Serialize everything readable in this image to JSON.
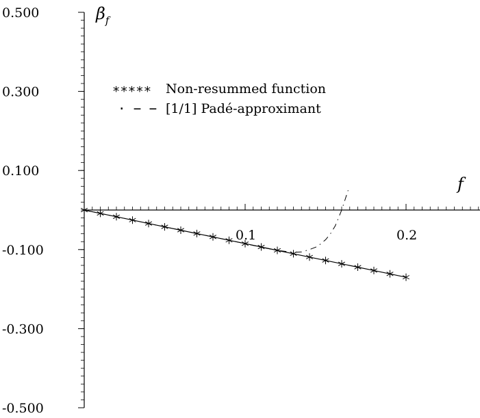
{
  "chart_data": {
    "type": "line",
    "xlabel": "f",
    "ylabel_main": "β",
    "ylabel_sub": "f",
    "xlim": [
      0,
      0.27
    ],
    "ylim": [
      -0.5,
      0.5
    ],
    "x_ticks": [
      {
        "value": 0.1,
        "label": "0.1"
      },
      {
        "value": 0.2,
        "label": "0.2"
      }
    ],
    "y_ticks": [
      {
        "value": 0.5,
        "label": "0.500"
      },
      {
        "value": 0.3,
        "label": "0.300"
      },
      {
        "value": 0.1,
        "label": "0.100"
      },
      {
        "value": -0.1,
        "label": "-0.100"
      },
      {
        "value": -0.3,
        "label": "-0.300"
      },
      {
        "value": -0.5,
        "label": "-0.500"
      }
    ],
    "legend_position": "top-left",
    "series": [
      {
        "name": "Non-resummed function",
        "legend_marker": "∗∗∗∗∗",
        "style": "solid-with-asterisks",
        "x": [
          0,
          0.01,
          0.02,
          0.03,
          0.04,
          0.05,
          0.06,
          0.07,
          0.08,
          0.09,
          0.1,
          0.11,
          0.12,
          0.13,
          0.14,
          0.15,
          0.16,
          0.17,
          0.18,
          0.19,
          0.2
        ],
        "y": [
          0,
          -0.0085,
          -0.017,
          -0.0255,
          -0.034,
          -0.0425,
          -0.051,
          -0.0595,
          -0.068,
          -0.0765,
          -0.085,
          -0.0935,
          -0.102,
          -0.1105,
          -0.119,
          -0.1275,
          -0.136,
          -0.1445,
          -0.153,
          -0.1615,
          -0.17
        ]
      },
      {
        "name": "[1/1] Padé-approximant",
        "legend_marker": "· − −",
        "style": "dash-dot",
        "x": [
          0,
          0.02,
          0.04,
          0.06,
          0.08,
          0.1,
          0.11,
          0.12,
          0.13,
          0.135,
          0.14,
          0.145,
          0.15,
          0.153,
          0.156,
          0.158,
          0.16,
          0.162,
          0.164
        ],
        "y": [
          0,
          -0.017,
          -0.034,
          -0.051,
          -0.068,
          -0.085,
          -0.094,
          -0.102,
          -0.107,
          -0.106,
          -0.1,
          -0.092,
          -0.075,
          -0.06,
          -0.04,
          -0.02,
          0.0,
          0.025,
          0.05
        ]
      }
    ]
  }
}
